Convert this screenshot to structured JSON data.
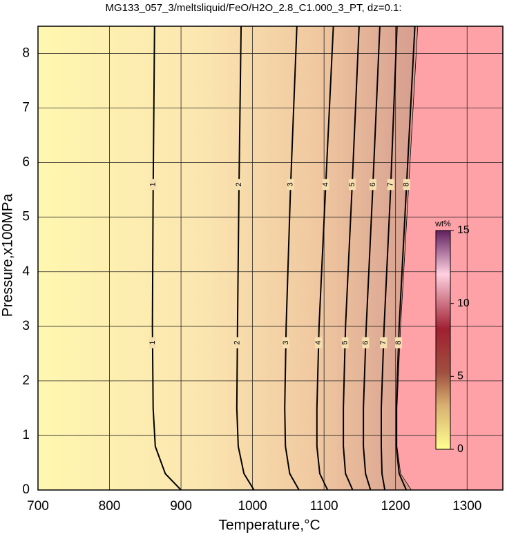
{
  "chart_data": {
    "type": "contour",
    "title": "MG133_057_3/meltsliquid/FeO/H2O_2.8_C1.000_3_PT, dz=0.1:",
    "x_label": "Temperature,°C",
    "y_label": "Pressure,x100MPa",
    "xlim": [
      700,
      1350
    ],
    "ylim": [
      0,
      8.5
    ],
    "xticks": [
      700,
      800,
      900,
      1000,
      1100,
      1200,
      1300
    ],
    "yticks": [
      0,
      1,
      2,
      3,
      4,
      5,
      6,
      7,
      8
    ],
    "grid": true,
    "pressures": [
      0,
      0.3,
      0.8,
      1.5,
      3,
      5.5,
      8.5
    ],
    "contours": [
      {
        "level": 1,
        "temperatures": [
          900,
          878,
          864,
          861,
          860,
          861,
          863
        ]
      },
      {
        "level": 2,
        "temperatures": [
          1002,
          988,
          980,
          978,
          979,
          981,
          984
        ]
      },
      {
        "level": 3,
        "temperatures": [
          1065,
          1052,
          1046,
          1045,
          1047,
          1053,
          1062
        ]
      },
      {
        "level": 4,
        "temperatures": [
          1105,
          1094,
          1090,
          1090,
          1093,
          1102,
          1113
        ]
      },
      {
        "level": 5,
        "temperatures": [
          1140,
          1130,
          1127,
          1127,
          1130,
          1139,
          1149
        ]
      },
      {
        "level": 6,
        "temperatures": [
          1165,
          1158,
          1155,
          1155,
          1159,
          1168,
          1178
        ]
      },
      {
        "level": 7,
        "temperatures": [
          1185,
          1181,
          1180,
          1180,
          1184,
          1193,
          1202
        ]
      },
      {
        "level": 8,
        "temperatures": [
          1215,
          1205,
          1201,
          1201,
          1205,
          1215,
          1227
        ]
      }
    ],
    "boundary": [
      1222,
      1207,
      1202,
      1202,
      1207,
      1218,
      1231
    ],
    "colorbar": {
      "label": "wt%",
      "lim": [
        0,
        15
      ],
      "ticks": [
        0,
        5,
        10,
        15
      ]
    }
  }
}
